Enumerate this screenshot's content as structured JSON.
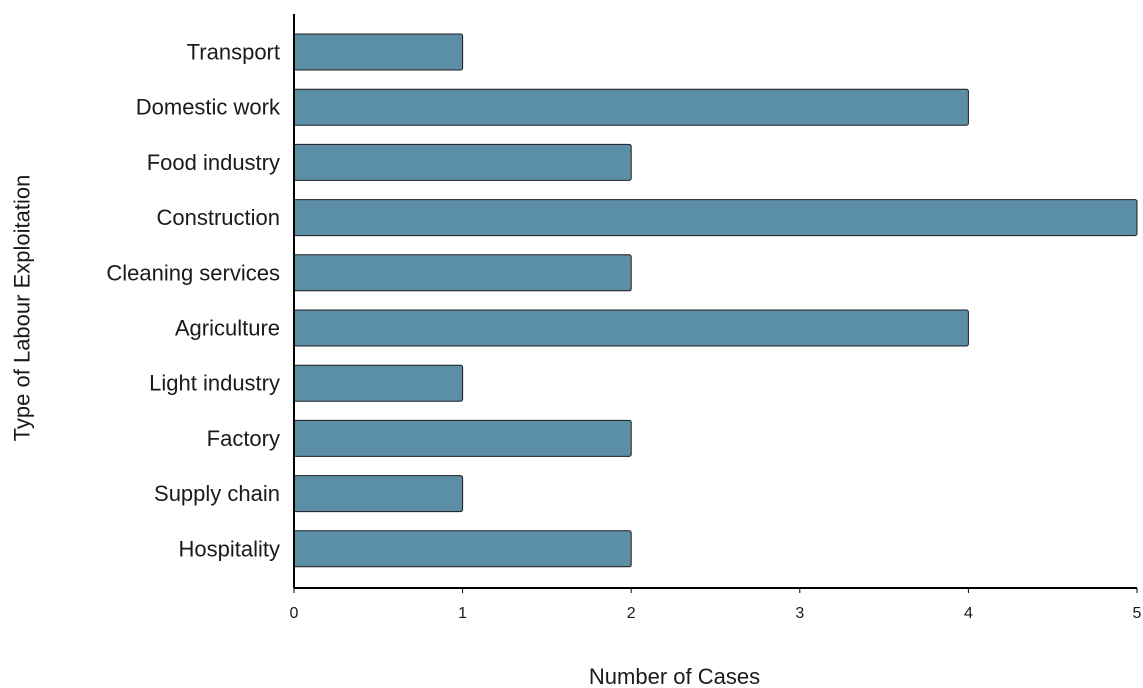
{
  "chart_data": {
    "type": "bar",
    "orientation": "horizontal",
    "categories": [
      "Transport",
      "Domestic work",
      "Food industry",
      "Construction",
      "Cleaning services",
      "Agriculture",
      "Light industry",
      "Factory",
      "Supply chain",
      "Hospitality"
    ],
    "values": [
      1,
      4,
      2,
      5,
      2,
      4,
      1,
      2,
      1,
      2
    ],
    "xlabel": "Number of Cases",
    "ylabel": "Type of Labour Exploitation",
    "xlim": [
      0,
      5
    ],
    "xticks": [
      "0",
      "1",
      "2",
      "3",
      "4",
      "5"
    ],
    "grid": false,
    "colors": {
      "bar": "#5b8fa6",
      "bar_edge": "#1c1c1c"
    }
  }
}
